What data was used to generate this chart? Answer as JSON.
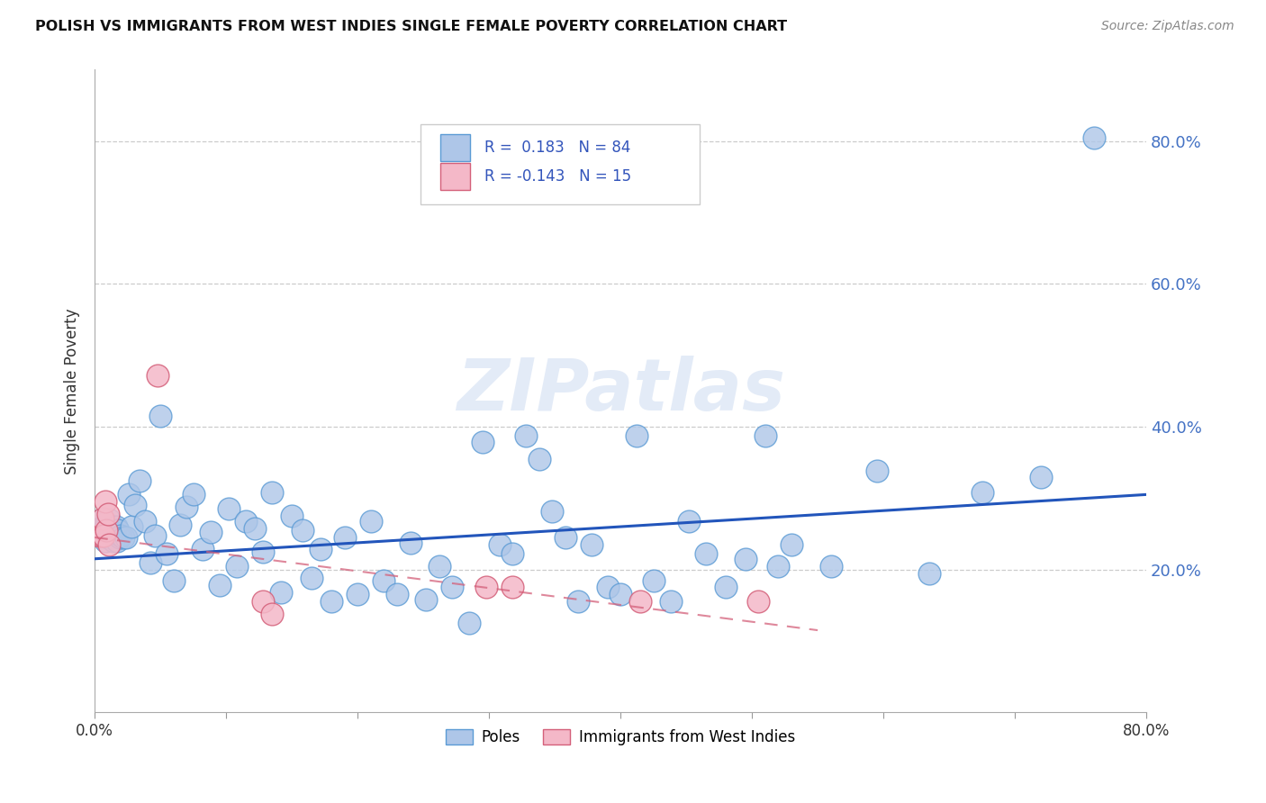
{
  "title": "POLISH VS IMMIGRANTS FROM WEST INDIES SINGLE FEMALE POVERTY CORRELATION CHART",
  "source": "Source: ZipAtlas.com",
  "ylabel": "Single Female Poverty",
  "x_min": 0.0,
  "x_max": 0.8,
  "y_min": 0.0,
  "y_max": 0.9,
  "y_ticks": [
    0.2,
    0.4,
    0.6,
    0.8
  ],
  "y_tick_labels": [
    "20.0%",
    "40.0%",
    "60.0%",
    "80.0%"
  ],
  "x_ticks": [
    0.0,
    0.1,
    0.2,
    0.3,
    0.4,
    0.5,
    0.6,
    0.7,
    0.8
  ],
  "x_tick_labels": [
    "0.0%",
    "",
    "",
    "",
    "",
    "",
    "",
    "",
    "80.0%"
  ],
  "poles_color": "#aec6e8",
  "poles_edge_color": "#5b9bd5",
  "west_indies_color": "#f4b8c8",
  "west_indies_edge_color": "#d4607a",
  "line_poles_color": "#2255bb",
  "line_wi_color": "#d4607a",
  "poles_line_x0": 0.0,
  "poles_line_x1": 0.8,
  "poles_line_y0": 0.215,
  "poles_line_y1": 0.305,
  "wi_line_x0": 0.0,
  "wi_line_x1": 0.55,
  "wi_line_y0": 0.245,
  "wi_line_y1": 0.115,
  "poles_x": [
    0.003,
    0.005,
    0.006,
    0.007,
    0.008,
    0.009,
    0.01,
    0.011,
    0.012,
    0.013,
    0.014,
    0.015,
    0.016,
    0.017,
    0.018,
    0.019,
    0.02,
    0.022,
    0.024,
    0.026,
    0.028,
    0.031,
    0.034,
    0.038,
    0.042,
    0.046,
    0.05,
    0.055,
    0.06,
    0.065,
    0.07,
    0.075,
    0.082,
    0.088,
    0.095,
    0.102,
    0.108,
    0.115,
    0.122,
    0.128,
    0.135,
    0.142,
    0.15,
    0.158,
    0.165,
    0.172,
    0.18,
    0.19,
    0.2,
    0.21,
    0.22,
    0.23,
    0.24,
    0.252,
    0.262,
    0.272,
    0.285,
    0.295,
    0.308,
    0.318,
    0.328,
    0.338,
    0.348,
    0.358,
    0.368,
    0.378,
    0.39,
    0.4,
    0.412,
    0.425,
    0.438,
    0.452,
    0.465,
    0.48,
    0.495,
    0.51,
    0.53,
    0.56,
    0.595,
    0.635,
    0.675,
    0.72,
    0.76,
    0.52
  ],
  "poles_y": [
    0.255,
    0.27,
    0.26,
    0.255,
    0.24,
    0.265,
    0.245,
    0.27,
    0.255,
    0.245,
    0.24,
    0.25,
    0.26,
    0.24,
    0.255,
    0.245,
    0.248,
    0.245,
    0.245,
    0.305,
    0.26,
    0.29,
    0.325,
    0.268,
    0.21,
    0.248,
    0.415,
    0.222,
    0.185,
    0.262,
    0.288,
    0.305,
    0.228,
    0.252,
    0.178,
    0.285,
    0.205,
    0.268,
    0.258,
    0.225,
    0.308,
    0.168,
    0.275,
    0.255,
    0.188,
    0.228,
    0.155,
    0.245,
    0.165,
    0.268,
    0.185,
    0.165,
    0.238,
    0.158,
    0.205,
    0.175,
    0.125,
    0.378,
    0.235,
    0.222,
    0.388,
    0.355,
    0.282,
    0.245,
    0.155,
    0.235,
    0.175,
    0.165,
    0.388,
    0.185,
    0.155,
    0.268,
    0.222,
    0.175,
    0.215,
    0.388,
    0.235,
    0.205,
    0.338,
    0.195,
    0.308,
    0.33,
    0.805,
    0.205
  ],
  "wi_x": [
    0.003,
    0.005,
    0.006,
    0.007,
    0.008,
    0.009,
    0.01,
    0.011,
    0.048,
    0.128,
    0.135,
    0.298,
    0.318,
    0.415,
    0.505
  ],
  "wi_y": [
    0.248,
    0.248,
    0.272,
    0.248,
    0.295,
    0.255,
    0.278,
    0.235,
    0.472,
    0.155,
    0.138,
    0.175,
    0.175,
    0.155,
    0.155
  ]
}
